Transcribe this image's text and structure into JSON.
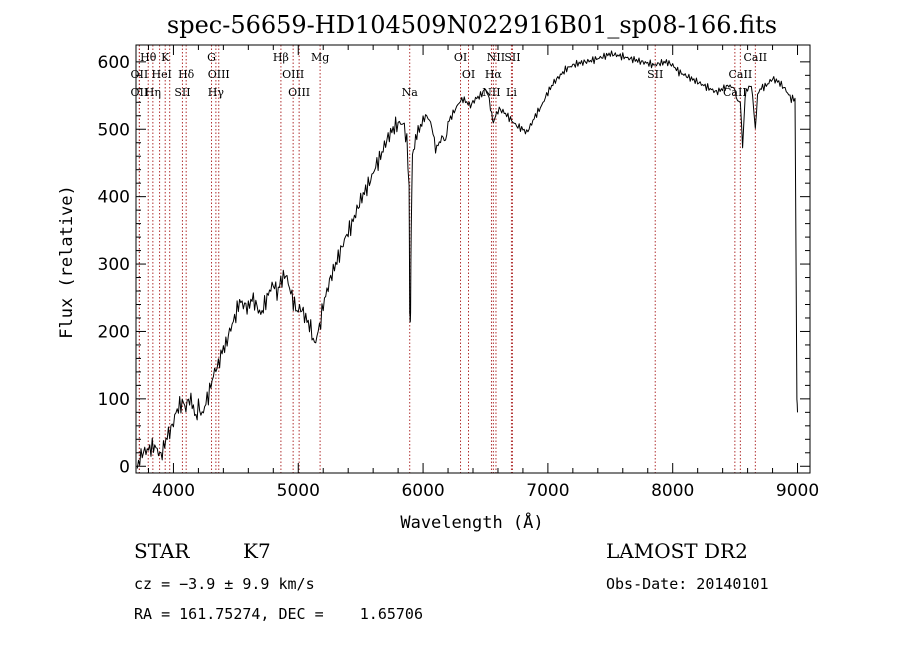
{
  "chart_data": {
    "type": "line",
    "title": "spec-56659-HD104509N022916B01_sp08-166.fits",
    "xlabel": "Wavelength (Å)",
    "ylabel": "Flux (relative)",
    "xlim": [
      3700,
      9100
    ],
    "ylim": [
      -10,
      625
    ],
    "xticks": [
      4000,
      5000,
      6000,
      7000,
      8000,
      9000
    ],
    "yticks": [
      0,
      100,
      200,
      300,
      400,
      500,
      600
    ],
    "line_color": "#000000",
    "marker_color": "#b03030",
    "series": [
      {
        "x": [
          3710,
          3750,
          3800,
          3850,
          3900,
          3950,
          3980,
          4000,
          4020,
          4050,
          4080,
          4100,
          4120,
          4150,
          4180,
          4200,
          4230,
          4260,
          4280,
          4300,
          4320,
          4340,
          4360,
          4380,
          4400,
          4420,
          4450,
          4480,
          4500,
          4530,
          4560,
          4600,
          4630,
          4660,
          4700,
          4740,
          4780,
          4810,
          4830,
          4860,
          4900,
          4930,
          4960,
          4990,
          5020,
          5060,
          5100,
          5130,
          5160,
          5180,
          5200,
          5230,
          5260,
          5300,
          5340,
          5380,
          5420,
          5460,
          5500,
          5540,
          5580,
          5620,
          5660,
          5700,
          5740,
          5780,
          5820,
          5850,
          5870,
          5888,
          5893,
          5896,
          5900,
          5905,
          5915,
          5940,
          5970,
          6000,
          6030,
          6060,
          6080,
          6100,
          6130,
          6160,
          6180,
          6200,
          6230,
          6260,
          6290,
          6320,
          6350,
          6380,
          6420,
          6460,
          6500,
          6530,
          6550,
          6563,
          6580,
          6610,
          6650,
          6700,
          6750,
          6800,
          6830,
          6860,
          6900,
          6950,
          7000,
          7050,
          7100,
          7150,
          7200,
          7250,
          7300,
          7350,
          7400,
          7450,
          7500,
          7550,
          7600,
          7650,
          7700,
          7750,
          7800,
          7850,
          7900,
          7950,
          8000,
          8050,
          8100,
          8150,
          8200,
          8250,
          8300,
          8350,
          8400,
          8450,
          8498,
          8520,
          8542,
          8560,
          8580,
          8600,
          8620,
          8640,
          8662,
          8680,
          8700,
          8750,
          8800,
          8850,
          8900,
          8950,
          8980,
          8995,
          9000
        ],
        "values": [
          0,
          20,
          25,
          30,
          15,
          45,
          55,
          65,
          80,
          90,
          95,
          85,
          100,
          95,
          70,
          90,
          75,
          95,
          105,
          120,
          135,
          145,
          150,
          165,
          175,
          180,
          200,
          215,
          225,
          245,
          240,
          235,
          250,
          240,
          225,
          245,
          265,
          270,
          255,
          275,
          285,
          265,
          245,
          230,
          235,
          220,
          205,
          180,
          200,
          215,
          240,
          260,
          280,
          300,
          320,
          340,
          355,
          375,
          395,
          410,
          425,
          445,
          460,
          480,
          495,
          505,
          510,
          505,
          480,
          420,
          240,
          210,
          230,
          350,
          460,
          490,
          500,
          515,
          520,
          510,
          495,
          470,
          480,
          490,
          480,
          510,
          520,
          530,
          540,
          545,
          540,
          535,
          545,
          550,
          560,
          545,
          520,
          505,
          520,
          530,
          525,
          515,
          505,
          500,
          495,
          505,
          520,
          535,
          555,
          570,
          580,
          590,
          595,
          598,
          600,
          602,
          605,
          608,
          612,
          610,
          608,
          605,
          603,
          600,
          598,
          595,
          598,
          600,
          595,
          585,
          580,
          575,
          570,
          565,
          560,
          555,
          560,
          565,
          560,
          540,
          545,
          470,
          550,
          560,
          565,
          555,
          500,
          550,
          560,
          565,
          575,
          570,
          560,
          545,
          545,
          100,
          80
        ]
      }
    ],
    "line_markers": [
      {
        "label": "Hθ",
        "x": 3798,
        "row": 1
      },
      {
        "label": "K",
        "x": 3934,
        "row": 1
      },
      {
        "label": "G",
        "x": 4305,
        "row": 1
      },
      {
        "label": "Hβ",
        "x": 4861,
        "row": 1
      },
      {
        "label": "Mg",
        "x": 5175,
        "row": 1
      },
      {
        "label": "OI",
        "x": 6300,
        "row": 1
      },
      {
        "label": "NII",
        "x": 6584,
        "row": 1
      },
      {
        "label": "SII",
        "x": 6716,
        "row": 1
      },
      {
        "label": "CaII",
        "x": 8662,
        "row": 1
      },
      {
        "label": "OII",
        "x": 3727,
        "row": 2
      },
      {
        "label": "He",
        "x": 3889,
        "row": 2
      },
      {
        "label": "I",
        "x": 3970,
        "row": 2
      },
      {
        "label": "Hδ",
        "x": 4102,
        "row": 2
      },
      {
        "label": "OIII",
        "x": 4363,
        "row": 2
      },
      {
        "label": "OIII",
        "x": 4959,
        "row": 2
      },
      {
        "label": "OI",
        "x": 6364,
        "row": 2
      },
      {
        "label": "Hα",
        "x": 6563,
        "row": 2
      },
      {
        "label": "SII",
        "x": 7860,
        "row": 2
      },
      {
        "label": "CaII",
        "x": 8542,
        "row": 2
      },
      {
        "label": "OII",
        "x": 3727,
        "row": 3
      },
      {
        "label": "Hη",
        "x": 3835,
        "row": 3
      },
      {
        "label": "SII",
        "x": 4072,
        "row": 3
      },
      {
        "label": "Hγ",
        "x": 4340,
        "row": 3
      },
      {
        "label": "OIII",
        "x": 5007,
        "row": 3
      },
      {
        "label": "Na",
        "x": 5893,
        "row": 3
      },
      {
        "label": "NII",
        "x": 6548,
        "row": 3
      },
      {
        "label": "Li",
        "x": 6708,
        "row": 3
      },
      {
        "label": "CaII",
        "x": 8498,
        "row": 3
      }
    ]
  },
  "info": {
    "class_label": "STAR",
    "subclass": "K7",
    "cz_text": "cz = −3.9 ± 9.9 km/s",
    "radec_text": "RA = 161.75274, DEC =    1.65706",
    "survey": "LAMOST DR2",
    "obs_date_text": "Obs-Date: 20140101"
  }
}
